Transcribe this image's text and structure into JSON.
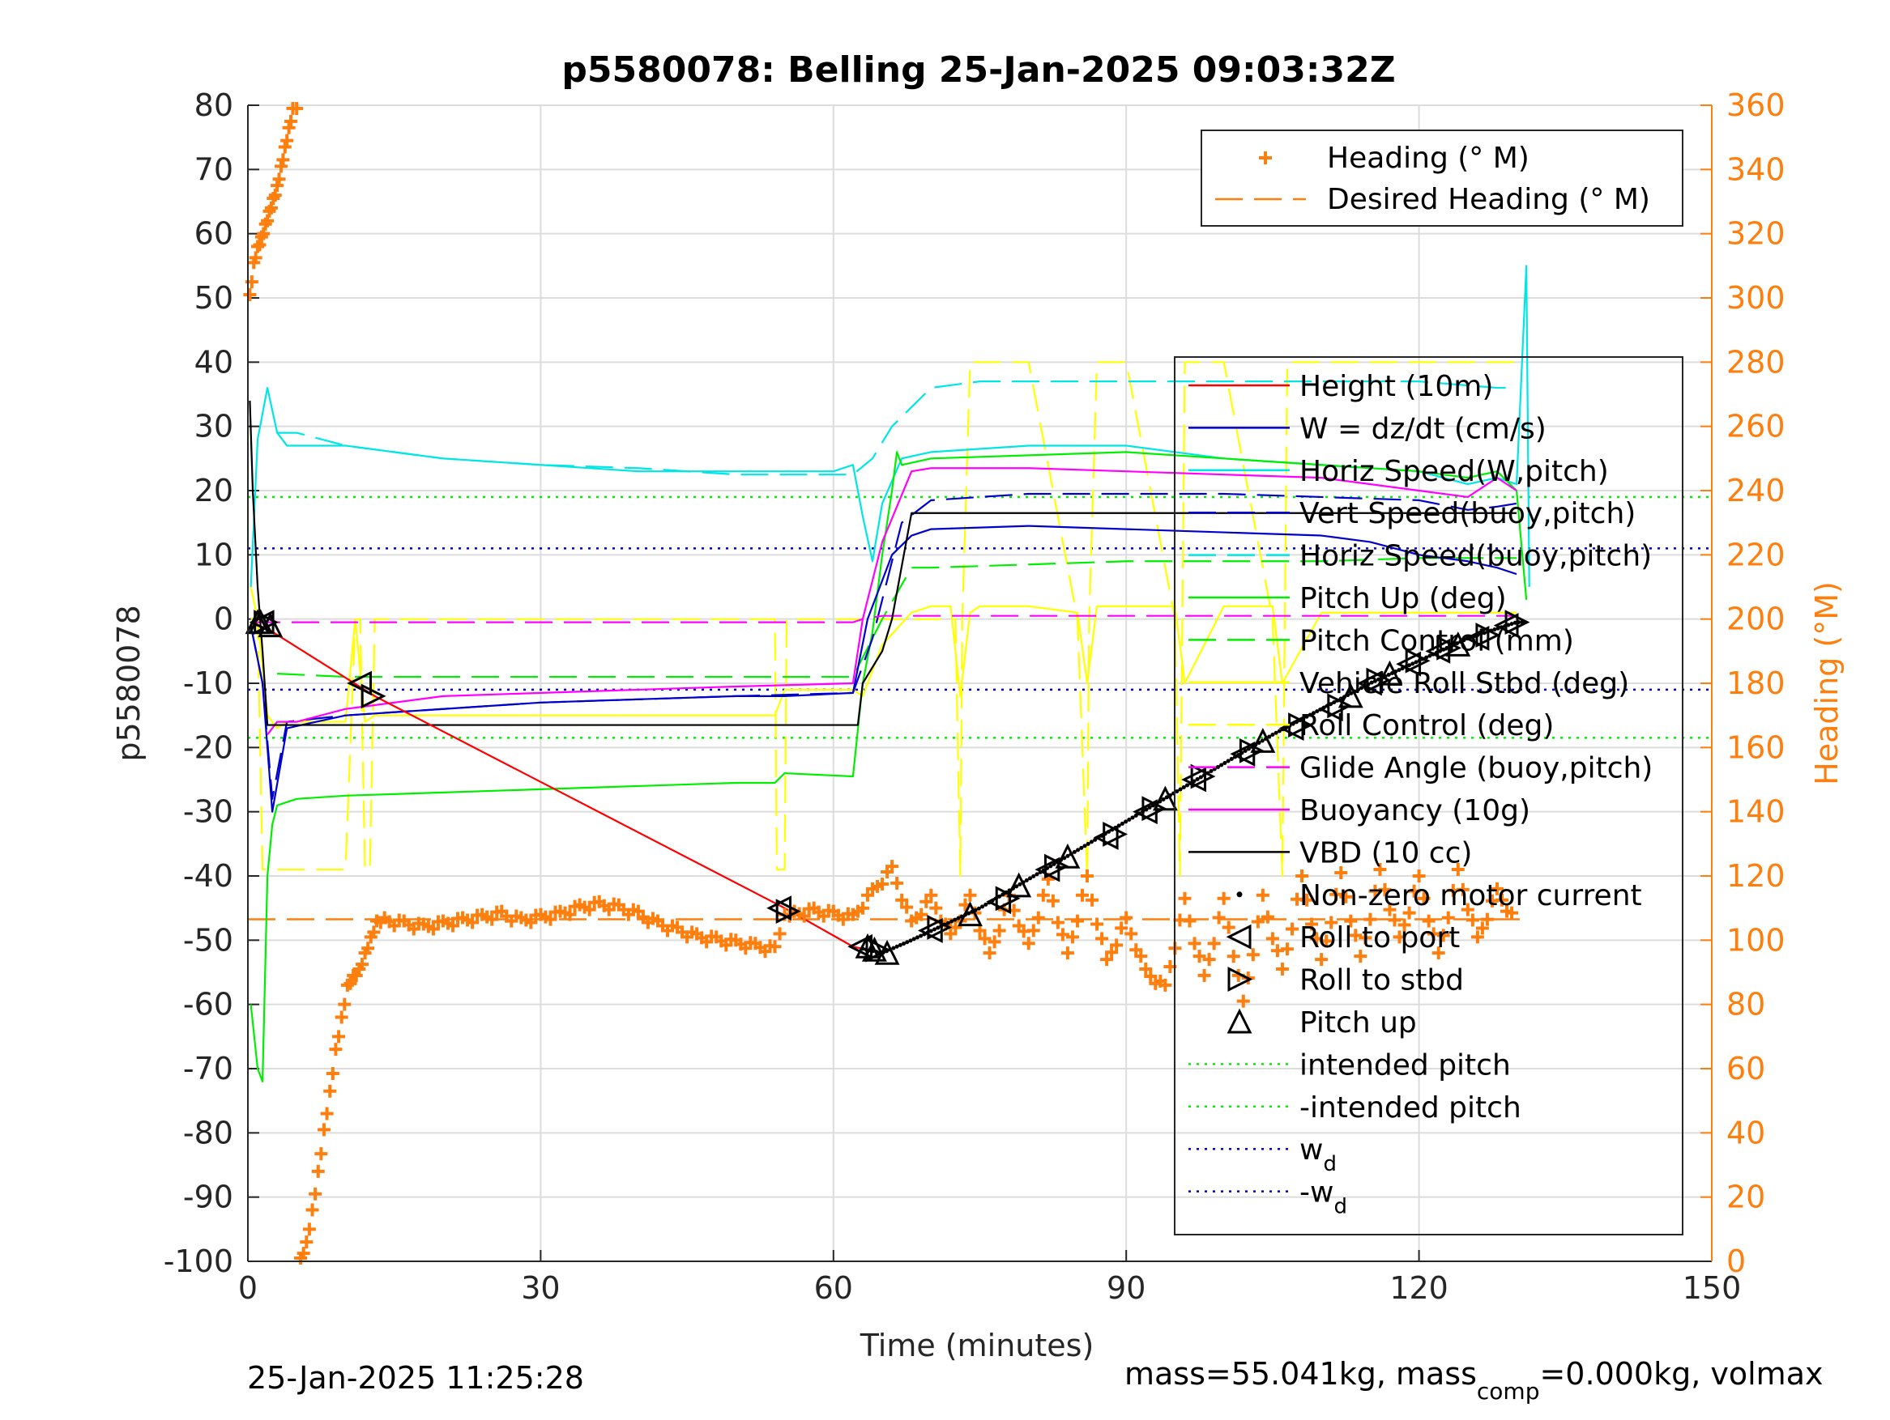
{
  "title": "p5580078: Belling 25-Jan-2025 09:03:32Z",
  "ylabel_left": "p5580078",
  "ylabel_right": "Heading (°M)",
  "xlabel": "Time (minutes)",
  "footer_left": "25-Jan-2025 11:25:28",
  "footer_right_parts": {
    "pre": "mass=55.041kg, mass",
    "sub": "comp",
    "post": "=0.000kg, volmax"
  },
  "colors": {
    "heading": "#ff7f0e",
    "cyan": "#00e5e5",
    "yellow": "#ffff00",
    "green": "#00ee00",
    "magenta": "#ff00ff",
    "blue": "#0000cc",
    "red": "#ff0000",
    "black": "#000000"
  },
  "chart_data": {
    "type": "line",
    "xlim": [
      0,
      150
    ],
    "ylim": [
      -100,
      80
    ],
    "ylim_right": [
      0,
      360
    ],
    "x_ticks": [
      "0",
      "30",
      "60",
      "90",
      "120",
      "150"
    ],
    "y_ticks": [
      "80",
      "70",
      "60",
      "50",
      "40",
      "30",
      "20",
      "10",
      "0",
      "-10",
      "-20",
      "-30",
      "-40",
      "-50",
      "-60",
      "-70",
      "-80",
      "-90",
      "-100"
    ],
    "y_ticks_right": [
      "360",
      "340",
      "320",
      "300",
      "280",
      "260",
      "240",
      "220",
      "200",
      "180",
      "160",
      "140",
      "120",
      "100",
      "80",
      "60",
      "40",
      "20",
      "0"
    ],
    "grid": true,
    "legend_top": [
      "Heading (° M)",
      "Desired Heading (° M)"
    ],
    "legend_main": [
      {
        "label": "Height (10m)",
        "color": "#ff0000",
        "style": "solid"
      },
      {
        "label": "W = dz/dt (cm/s)",
        "color": "#0000cc",
        "style": "solid"
      },
      {
        "label": "Horiz Speed(W,pitch)",
        "color": "#00e5e5",
        "style": "solid"
      },
      {
        "label": "Vert Speed(buoy,pitch)",
        "color": "#0000cc",
        "style": "dash"
      },
      {
        "label": "Horiz Speed(buoy,pitch)",
        "color": "#00e5e5",
        "style": "dash"
      },
      {
        "label": "Pitch Up (deg)",
        "color": "#00ee00",
        "style": "solid"
      },
      {
        "label": "Pitch Control (mm)",
        "color": "#00ee00",
        "style": "dash"
      },
      {
        "label": "Vehicle Roll Stbd (deg)",
        "color": "#ffff00",
        "style": "solid"
      },
      {
        "label": "Roll Control (deg)",
        "color": "#ffff00",
        "style": "dash"
      },
      {
        "label": "Glide Angle (buoy,pitch)",
        "color": "#ff00ff",
        "style": "dash"
      },
      {
        "label": "Buoyancy (10g)",
        "color": "#ff00ff",
        "style": "solid"
      },
      {
        "label": "VBD (10 cc)",
        "color": "#000000",
        "style": "solid"
      },
      {
        "label": "Non-zero motor current",
        "color": "#000000",
        "style": "dot"
      },
      {
        "label": "Roll to port",
        "color": "#000000",
        "style": "tri-left"
      },
      {
        "label": "Roll to stbd",
        "color": "#000000",
        "style": "tri-right"
      },
      {
        "label": "Pitch up",
        "color": "#000000",
        "style": "tri-up"
      },
      {
        "label": "intended pitch",
        "color": "#00ee00",
        "style": "dotted"
      },
      {
        "label": "-intended pitch",
        "color": "#00ee00",
        "style": "dotted"
      },
      {
        "label": "w",
        "sub": "d",
        "color": "#0000cc",
        "style": "dotted"
      },
      {
        "label": "-w",
        "sub": "d",
        "color": "#0000cc",
        "style": "dotted"
      }
    ],
    "hlines": [
      {
        "name": "intended pitch",
        "y": 19,
        "color": "#00ee00"
      },
      {
        "name": "-intended pitch",
        "y": -18.5,
        "color": "#00ee00"
      },
      {
        "name": "w_d",
        "y": 11,
        "color": "#0000cc"
      },
      {
        "name": "-w_d",
        "y": -11,
        "color": "#0000cc"
      }
    ],
    "series": [
      {
        "name": "Height (10m)",
        "color": "#ff0000",
        "style": "solid",
        "x": [
          0.5,
          1,
          2,
          13,
          55,
          62,
          65,
          68,
          75,
          85,
          95,
          105,
          115,
          125,
          130
        ],
        "y": [
          -1,
          -1,
          -1.5,
          -12,
          -45,
          -51,
          -52,
          -50,
          -45,
          -36,
          -27,
          -18,
          -10,
          -3,
          -0.5
        ]
      },
      {
        "name": "W = dz/dt (cm/s)",
        "color": "#0000cc",
        "style": "solid",
        "x": [
          0.3,
          1.5,
          2.5,
          4,
          10,
          20,
          30,
          40,
          50,
          55,
          62,
          63.5,
          66,
          68,
          70,
          80,
          90,
          100,
          110,
          115,
          120,
          125,
          128,
          130
        ],
        "y": [
          -1,
          -10,
          -30,
          -17,
          -15,
          -14,
          -13,
          -12.5,
          -12,
          -12,
          -11.5,
          0,
          10,
          13,
          14,
          14.5,
          14,
          13.5,
          13,
          12,
          10,
          9,
          8,
          7
        ]
      },
      {
        "name": "Vert Speed(buoy,pitch)",
        "color": "#0000cc",
        "style": "dash",
        "x": [
          0.3,
          1.5,
          2.5,
          4,
          10,
          30,
          50,
          62,
          64,
          67,
          70,
          80,
          90,
          100,
          110,
          120,
          125,
          128,
          130
        ],
        "y": [
          -1,
          -10,
          -28,
          -16,
          -15,
          -13,
          -12,
          -11.5,
          -3,
          15,
          18.5,
          19.5,
          19.5,
          19.5,
          19,
          18.5,
          17,
          17.5,
          18
        ]
      },
      {
        "name": "Horiz Speed(W,pitch)",
        "color": "#00e5e5",
        "style": "solid",
        "x": [
          0.3,
          1,
          2,
          3,
          4,
          10,
          20,
          30,
          40,
          50,
          55,
          60,
          62,
          63,
          64,
          65,
          67,
          70,
          80,
          90,
          100,
          110,
          120,
          125,
          128,
          130,
          131,
          131.3
        ],
        "y": [
          5,
          28,
          36,
          29,
          27,
          27,
          25,
          24,
          23,
          23,
          23,
          23,
          24,
          16,
          9,
          18,
          25,
          26,
          27,
          27,
          25,
          24,
          23,
          21,
          22,
          21,
          55,
          5
        ]
      },
      {
        "name": "Horiz Speed(buoy,pitch)",
        "color": "#00e5e5",
        "style": "dash",
        "x": [
          3,
          5,
          10,
          20,
          30,
          40,
          50,
          60,
          62,
          64,
          66,
          70,
          75,
          80,
          90,
          100,
          110,
          120,
          128,
          130
        ],
        "y": [
          29,
          29,
          27,
          25,
          24,
          23.5,
          22.5,
          22.5,
          22.5,
          25,
          30,
          36,
          37,
          37,
          37,
          37,
          37,
          37,
          36,
          36
        ]
      },
      {
        "name": "Pitch Up (deg)",
        "color": "#00ee00",
        "style": "solid",
        "x": [
          0.3,
          1,
          1.5,
          2,
          2.5,
          3,
          5,
          10,
          20,
          30,
          40,
          50,
          54,
          55,
          62,
          63,
          64,
          65,
          66,
          66.5,
          67,
          70,
          80,
          90,
          100,
          110,
          120,
          125,
          128,
          130,
          131
        ],
        "y": [
          -60,
          -70,
          -72,
          -40,
          -32,
          -29,
          -28,
          -27.5,
          -27,
          -26.5,
          -26,
          -25.5,
          -25.5,
          -24,
          -24.5,
          -10,
          -2,
          10,
          20,
          26,
          24,
          25,
          25.5,
          26,
          25,
          24,
          23,
          22,
          23,
          20,
          3
        ]
      },
      {
        "name": "Pitch Control (mm)",
        "color": "#00ee00",
        "style": "dash",
        "x": [
          3,
          10,
          30,
          50,
          62,
          65,
          68,
          70,
          80,
          90,
          100,
          110,
          120,
          125,
          130
        ],
        "y": [
          -8.5,
          -9,
          -9,
          -9,
          -9,
          0,
          8,
          8,
          8.5,
          9,
          9,
          9,
          9.5,
          9.5,
          9.5
        ]
      },
      {
        "name": "Vehicle Roll Stbd (deg)",
        "color": "#ffff00",
        "style": "solid",
        "x": [
          0.3,
          1,
          2,
          3,
          4,
          10,
          11,
          12,
          13,
          30,
          50,
          54,
          55,
          62,
          63,
          65,
          68,
          70,
          72,
          73,
          74,
          75,
          80,
          85,
          86,
          87,
          90,
          95,
          96,
          100,
          105,
          106,
          110,
          115,
          120,
          125,
          130
        ],
        "y": [
          5,
          0,
          -15,
          -17,
          -16,
          -16,
          0,
          -16,
          -15,
          -15,
          -15,
          -15,
          -11,
          -11,
          -12,
          -4,
          1,
          2,
          2,
          -12,
          1,
          2,
          2,
          1,
          -10,
          2,
          2,
          2,
          -10,
          2,
          2,
          -10,
          1,
          1,
          1,
          1,
          1
        ]
      },
      {
        "name": "Roll Control (deg)",
        "color": "#ffff00",
        "style": "dash",
        "x": [
          0.3,
          1,
          1.5,
          2,
          10,
          11,
          11.5,
          12,
          12.5,
          13,
          30,
          50,
          54,
          54.2,
          55,
          55.2,
          62,
          63,
          68,
          72.5,
          73,
          73.2,
          74,
          80,
          85,
          86,
          86.2,
          87,
          90,
          95,
          95.5,
          96,
          100,
          105,
          106,
          106.5,
          110,
          120,
          130
        ],
        "y": [
          0,
          0,
          -39,
          -39,
          -39,
          0,
          0,
          -39,
          -39,
          0,
          0,
          0,
          0,
          -39,
          -39,
          0,
          0,
          0,
          0,
          0,
          -40,
          0,
          40,
          40,
          0,
          -40,
          0,
          40,
          40,
          0,
          -40,
          40,
          40,
          0,
          -40,
          40,
          40,
          40,
          40
        ]
      },
      {
        "name": "Glide Angle (buoy,pitch)",
        "color": "#ff00ff",
        "style": "dash",
        "x": [
          0.5,
          30,
          60,
          62,
          63,
          65,
          70,
          100,
          130
        ],
        "y": [
          -0.5,
          -0.5,
          -0.5,
          -0.5,
          0,
          0.5,
          0.5,
          0.5,
          0.5
        ]
      },
      {
        "name": "Buoyancy (10g)",
        "color": "#ff00ff",
        "style": "solid",
        "x": [
          2,
          3,
          5,
          10,
          20,
          30,
          40,
          50,
          62,
          63,
          65,
          68,
          70,
          80,
          90,
          100,
          110,
          120,
          125,
          128,
          130
        ],
        "y": [
          -18,
          -16,
          -16,
          -14,
          -12,
          -11.5,
          -11,
          -10.5,
          -10,
          0,
          12,
          23,
          23.5,
          23.5,
          23,
          22.5,
          22,
          20,
          19,
          22,
          20
        ]
      },
      {
        "name": "VBD (10 cc)",
        "color": "#000000",
        "style": "solid",
        "x": [
          0.2,
          0.5,
          1,
          1.5,
          2,
          3,
          10,
          30,
          50,
          62.5,
          63,
          65,
          66,
          68,
          70,
          90,
          110,
          130
        ],
        "y": [
          34,
          20,
          5,
          -5,
          -16.5,
          -16.5,
          -16.5,
          -16.5,
          -16.5,
          -16.5,
          -10,
          -5,
          0,
          16.5,
          16.5,
          16.5,
          16.5,
          16.5
        ]
      }
    ],
    "heading": {
      "name": "Heading (° M)",
      "axis": "right",
      "color": "#ff7f0e",
      "x": [
        0.2,
        0.6,
        1,
        1.4,
        1.8,
        2.2,
        2.6,
        3,
        3.4,
        3.8,
        4.2,
        4.6,
        5.4,
        6,
        6.6,
        7.2,
        7.8,
        8.4,
        9,
        9.6,
        10.2,
        10.8,
        11.4,
        12,
        12.6,
        13.2,
        14,
        16,
        18,
        20,
        22,
        24,
        26,
        28,
        30,
        32,
        34,
        36,
        38,
        40,
        42,
        44,
        46,
        48,
        50,
        52,
        54,
        55,
        56,
        58,
        60,
        62,
        64,
        66,
        68,
        70,
        72,
        74,
        76,
        78,
        80,
        82,
        84,
        86,
        88,
        90,
        92,
        94,
        96,
        98,
        100,
        102,
        104,
        106,
        108,
        110,
        112,
        114,
        116,
        118,
        120,
        122,
        124,
        126,
        128,
        130
      ],
      "y": [
        300,
        310,
        315,
        318,
        322,
        326,
        330,
        334,
        340,
        346,
        352,
        358,
        0,
        5,
        15,
        27,
        40,
        52,
        65,
        75,
        85,
        88,
        90,
        95,
        100,
        105,
        106,
        105,
        104,
        105,
        106,
        107,
        108,
        106,
        107,
        108,
        110,
        111,
        110,
        108,
        105,
        103,
        101,
        100,
        99,
        98,
        97,
        107,
        108,
        109,
        108,
        107,
        115,
        122,
        105,
        113,
        101,
        113,
        95,
        113,
        98,
        118,
        95,
        119,
        93,
        106,
        90,
        85,
        112,
        88,
        112,
        80,
        113,
        90,
        119,
        93,
        120,
        94,
        121,
        100,
        119,
        95,
        121,
        100,
        115,
        105
      ]
    },
    "desired_heading": {
      "name": "Desired Heading (° M)",
      "axis": "right",
      "value": 106.5
    },
    "markers": {
      "roll_to_port": [
        [
          1.5,
          -0.5
        ],
        [
          11.5,
          -10
        ],
        [
          54.5,
          -45
        ],
        [
          62.8,
          -51
        ],
        [
          70,
          -48.5
        ],
        [
          77,
          -44
        ],
        [
          82,
          -39
        ],
        [
          88,
          -34
        ],
        [
          92,
          -30
        ],
        [
          97,
          -25
        ],
        [
          102,
          -21
        ],
        [
          107,
          -17
        ],
        [
          111,
          -14
        ],
        [
          115,
          -10
        ],
        [
          119,
          -7
        ],
        [
          122,
          -5
        ],
        [
          126,
          -3
        ],
        [
          129,
          -1
        ]
      ],
      "roll_to_stbd": [
        [
          1.8,
          -0.5
        ],
        [
          12.8,
          -12
        ],
        [
          55.3,
          -45.5
        ],
        [
          64.5,
          -51.5
        ],
        [
          70.8,
          -48
        ],
        [
          77.8,
          -43.5
        ],
        [
          82.8,
          -38.5
        ],
        [
          88.8,
          -33.5
        ],
        [
          92.8,
          -29.5
        ],
        [
          97.8,
          -24.5
        ],
        [
          102.8,
          -20.5
        ],
        [
          107.8,
          -16.5
        ],
        [
          111.8,
          -13.5
        ],
        [
          115.8,
          -9.5
        ],
        [
          119.8,
          -6.5
        ],
        [
          123,
          -4.5
        ],
        [
          127,
          -2.5
        ],
        [
          130,
          -0.5
        ]
      ],
      "pitch_up": [
        [
          1,
          -0.5
        ],
        [
          1.3,
          -0.5
        ],
        [
          2.3,
          -1
        ],
        [
          63.5,
          -51
        ],
        [
          64.2,
          -51.5
        ],
        [
          65.5,
          -52
        ],
        [
          74,
          -46
        ],
        [
          79,
          -41.5
        ],
        [
          84,
          -37
        ],
        [
          94,
          -28
        ],
        [
          104,
          -19
        ],
        [
          113,
          -12
        ],
        [
          117,
          -8.5
        ],
        [
          124,
          -4
        ]
      ],
      "motor_dots_x_start": 63,
      "motor_dots_x_end": 131
    }
  }
}
